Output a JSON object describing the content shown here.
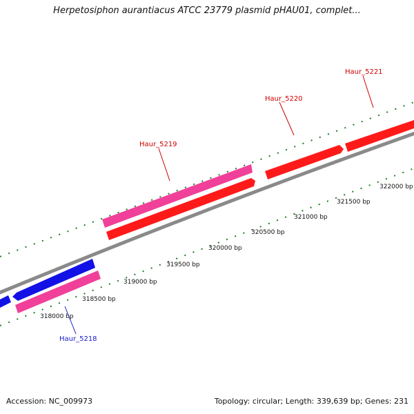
{
  "title": "Herpetosiphon aurantiacus ATCC 23779 plasmid pHAU01, complet...",
  "footer": {
    "accession": "Accession: NC_009973",
    "summary": "Topology: circular; Length: 339,639 bp; Genes: 231"
  },
  "colors": {
    "backbone": "#8a8a8a",
    "tick": "#1f7a1f",
    "forward_cds": "#ff1a1a",
    "forward_shadow": "#c40000",
    "pink_feature": "#f0409a",
    "reverse_cds": "#1212e6",
    "label_red": "#cc0000",
    "label_blue": "#1a1acc"
  },
  "scale": {
    "ticks": [
      {
        "bp": 318000,
        "label": "318000 bp"
      },
      {
        "bp": 318500,
        "label": "318500 bp"
      },
      {
        "bp": 319000,
        "label": "319000 bp"
      },
      {
        "bp": 319500,
        "label": "319500 bp"
      },
      {
        "bp": 320000,
        "label": "320000 bp"
      },
      {
        "bp": 320500,
        "label": "320500 bp"
      },
      {
        "bp": 321000,
        "label": "321000 bp"
      },
      {
        "bp": 321500,
        "label": "321500 bp"
      },
      {
        "bp": 322000,
        "label": "322000 bp"
      }
    ]
  },
  "genes": [
    {
      "name": "Haur_5218",
      "color": "blue"
    },
    {
      "name": "Haur_5219",
      "color": "red"
    },
    {
      "name": "Haur_5220",
      "color": "red"
    },
    {
      "name": "Haur_5221",
      "color": "red"
    }
  ]
}
